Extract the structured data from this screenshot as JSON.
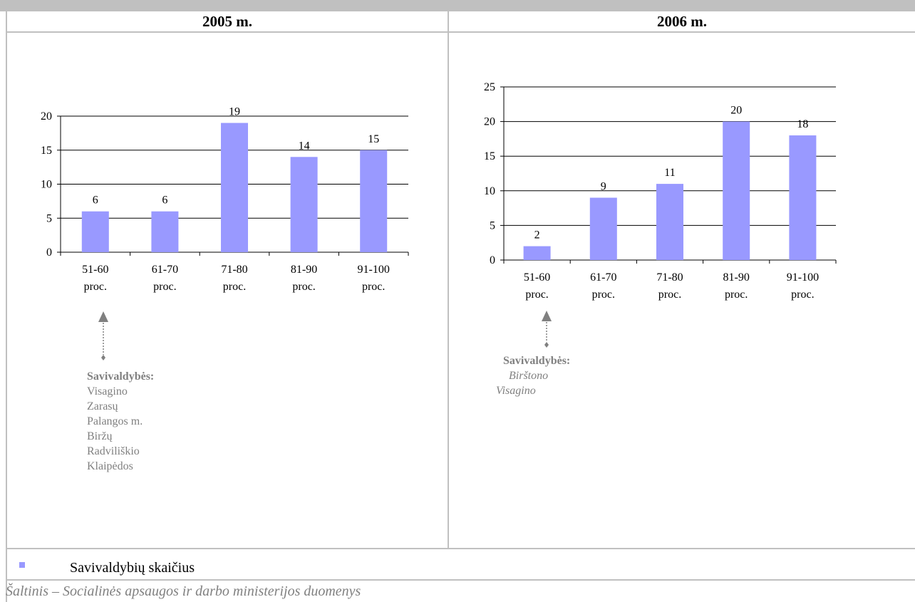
{
  "headers": {
    "left": "2005 m.",
    "right": "2006 m."
  },
  "chart_data": [
    {
      "type": "bar",
      "categories": [
        [
          "51-60",
          "proc."
        ],
        [
          "61-70",
          "proc."
        ],
        [
          "71-80",
          "proc."
        ],
        [
          "81-90",
          "proc."
        ],
        [
          "91-100",
          "proc."
        ]
      ],
      "values": [
        6,
        6,
        19,
        14,
        15
      ],
      "ylim": [
        0,
        20
      ],
      "yticks": [
        0,
        5,
        10,
        15,
        20
      ],
      "series_name": "Savivaldybių skaičius",
      "color": "#9999ff",
      "grid": true
    },
    {
      "type": "bar",
      "categories": [
        [
          "51-60",
          "proc."
        ],
        [
          "61-70",
          "proc."
        ],
        [
          "71-80",
          "proc."
        ],
        [
          "81-90",
          "proc."
        ],
        [
          "91-100",
          "proc."
        ]
      ],
      "values": [
        2,
        9,
        11,
        20,
        18
      ],
      "ylim": [
        0,
        25
      ],
      "yticks": [
        0,
        5,
        10,
        15,
        20,
        25
      ],
      "series_name": "Savivaldybių skaičius",
      "color": "#9999ff",
      "grid": true
    }
  ],
  "annotations": {
    "left": {
      "title": "Savivaldybės:",
      "items": [
        "Visagino",
        "Zarasų",
        "Palangos m.",
        "Biržų",
        "Radviliškio",
        "Klaipėdos"
      ]
    },
    "right": {
      "title": "Savivaldybės:",
      "items": [
        "Birštono",
        "Visagino"
      ]
    }
  },
  "legend": {
    "label": "Savivaldybių skaičius",
    "color": "#9999ff"
  },
  "source": "Šaltinis – Socialinės apsaugos ir darbo ministerijos duomenys"
}
